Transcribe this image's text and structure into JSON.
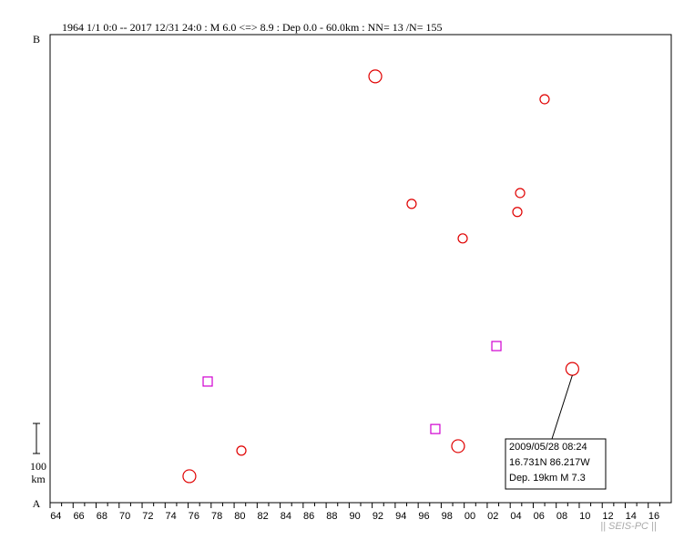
{
  "chart_data": {
    "type": "scatter",
    "title": "1964 1/1 0:0 -- 2017 12/31 24:0  : M 6.0 <=> 8.9  :  Dep 0.0 - 60.0km :  NN= 13 /N= 155",
    "top_label": "B",
    "bottom_label": "A",
    "scale_bar": 100,
    "scale_unit": "km",
    "watermark": "|| SEIS-PC ||",
    "xlim": [
      1964,
      2018
    ],
    "ylim": [
      0,
      1557
    ],
    "xticks": [
      {
        "value": 1964,
        "label": "64"
      },
      {
        "value": 1966,
        "label": "66"
      },
      {
        "value": 1968,
        "label": "68"
      },
      {
        "value": 1970,
        "label": "70"
      },
      {
        "value": 1972,
        "label": "72"
      },
      {
        "value": 1974,
        "label": "74"
      },
      {
        "value": 1976,
        "label": "76"
      },
      {
        "value": 1978,
        "label": "78"
      },
      {
        "value": 1980,
        "label": "80"
      },
      {
        "value": 1982,
        "label": "82"
      },
      {
        "value": 1984,
        "label": "84"
      },
      {
        "value": 1986,
        "label": "86"
      },
      {
        "value": 1988,
        "label": "88"
      },
      {
        "value": 1990,
        "label": "90"
      },
      {
        "value": 1992,
        "label": "92"
      },
      {
        "value": 1994,
        "label": "94"
      },
      {
        "value": 1996,
        "label": "96"
      },
      {
        "value": 1998,
        "label": "98"
      },
      {
        "value": 2000,
        "label": "00"
      },
      {
        "value": 2002,
        "label": "02"
      },
      {
        "value": 2004,
        "label": "04"
      },
      {
        "value": 2006,
        "label": "06"
      },
      {
        "value": 2008,
        "label": "08"
      },
      {
        "value": 2010,
        "label": "10"
      },
      {
        "value": 2012,
        "label": "12"
      },
      {
        "value": 2014,
        "label": "14"
      },
      {
        "value": 2016,
        "label": "16"
      }
    ],
    "series": [
      {
        "marker": "circle",
        "color": "#e00000",
        "x": [
          1992.27,
          2006.99,
          1995.43,
          2004.86,
          2004.62,
          1999.87,
          2009.4,
          1999.47,
          1980.63,
          1976.11
        ],
        "values": [
          1418,
          1342,
          994,
          1030,
          967,
          879,
          445,
          188,
          173,
          88
        ],
        "sizes": [
          7.3,
          6.3,
          6.3,
          6.3,
          6.3,
          6.3,
          7.3,
          7.3,
          6.3,
          7.3
        ]
      },
      {
        "marker": "square",
        "color": "#d000d0",
        "x": [
          1977.7,
          2002.8,
          1997.49
        ],
        "values": [
          403,
          521,
          245
        ],
        "sizes": [
          6.3,
          6.3,
          6.3
        ]
      }
    ],
    "annotation": {
      "series": 0,
      "index": 6,
      "lines": [
        "2009/05/28  08:24",
        "16.731N   86.217W",
        "Dep. 19km    M 7.3"
      ]
    }
  }
}
